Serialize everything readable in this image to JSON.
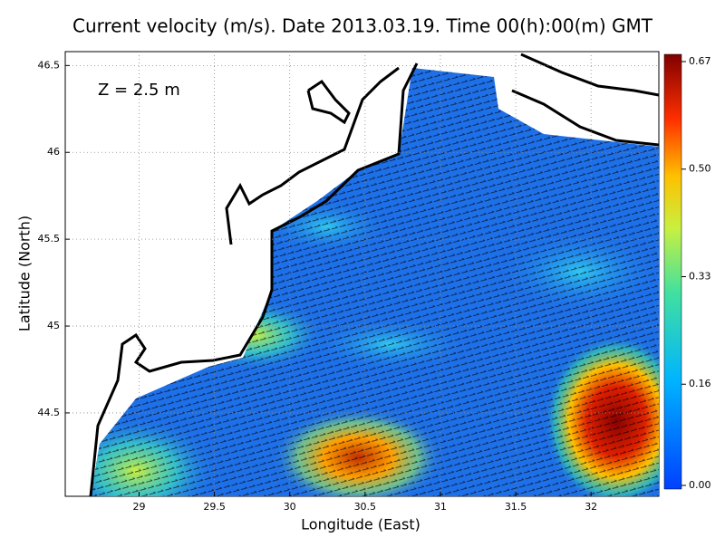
{
  "title": "Current velocity (m/s). Date 2013.03.19. Time 00(h):00(m) GMT",
  "annotation": "Z = 2.5 m",
  "map": {
    "xlabel": "Longitude (East)",
    "ylabel": "Latitude (North)",
    "xlim": [
      28.51,
      32.45
    ],
    "ylim": [
      44.02,
      46.58
    ],
    "xticks": [
      29,
      29.5,
      30,
      30.5,
      31,
      31.5,
      32
    ],
    "yticks": [
      44.5,
      45,
      45.5,
      46,
      46.5
    ],
    "grid": true
  },
  "colorbar": {
    "lim": [
      0,
      0.67
    ],
    "ticks": [
      {
        "value": 0,
        "label": "0.00"
      },
      0.16,
      0.33,
      {
        "value": 0.5,
        "label": "0.50"
      },
      0.67
    ]
  }
}
